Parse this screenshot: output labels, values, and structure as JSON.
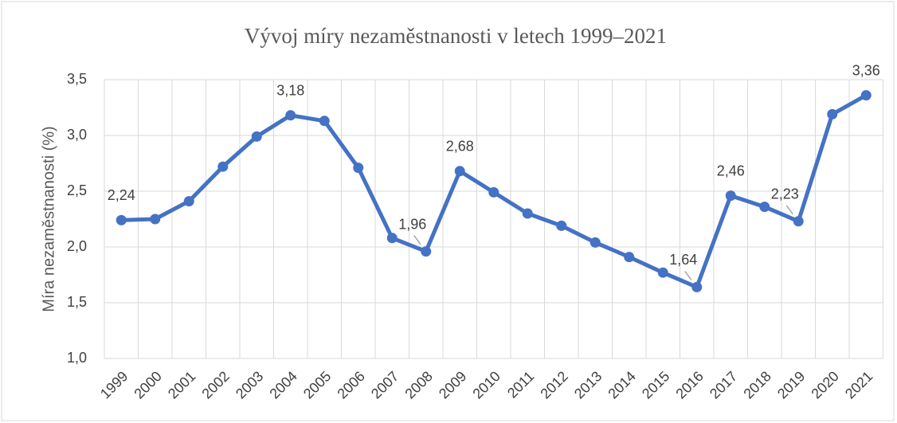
{
  "chart_data": {
    "type": "line",
    "title": "Vývoj míry nezaměstnanosti v letech 1999–2021",
    "ylabel": "Míra nezaměstnanosti (%)",
    "categories": [
      "1999",
      "2000",
      "2001",
      "2002",
      "2003",
      "2004",
      "2005",
      "2006",
      "2007",
      "2008",
      "2009",
      "2010",
      "2011",
      "2012",
      "2013",
      "2014",
      "2015",
      "2016",
      "2017",
      "2018",
      "2019",
      "2020",
      "2021"
    ],
    "series": [
      {
        "name": "Míra nezaměstnanosti",
        "color": "#4472c4",
        "values": [
          2.24,
          2.25,
          2.41,
          2.72,
          2.99,
          3.18,
          3.13,
          2.71,
          2.08,
          1.96,
          2.68,
          2.49,
          2.3,
          2.19,
          2.04,
          1.91,
          1.77,
          1.64,
          2.46,
          2.36,
          2.23,
          3.19,
          3.36
        ],
        "value_labels": [
          "2,24",
          null,
          null,
          null,
          null,
          "3,18",
          null,
          null,
          null,
          "1,96",
          "2,68",
          null,
          null,
          null,
          null,
          null,
          null,
          "1,64",
          "2,46",
          null,
          "2,23",
          null,
          "3,36"
        ]
      }
    ],
    "ylim": [
      1.0,
      3.5
    ],
    "yticks": [
      {
        "value": 1.0,
        "label": "1,0"
      },
      {
        "value": 1.5,
        "label": "1,5"
      },
      {
        "value": 2.0,
        "label": "2,0"
      },
      {
        "value": 2.5,
        "label": "2,5"
      },
      {
        "value": 3.0,
        "label": "3,0"
      },
      {
        "value": 3.5,
        "label": "3,5"
      }
    ],
    "grid": true
  }
}
